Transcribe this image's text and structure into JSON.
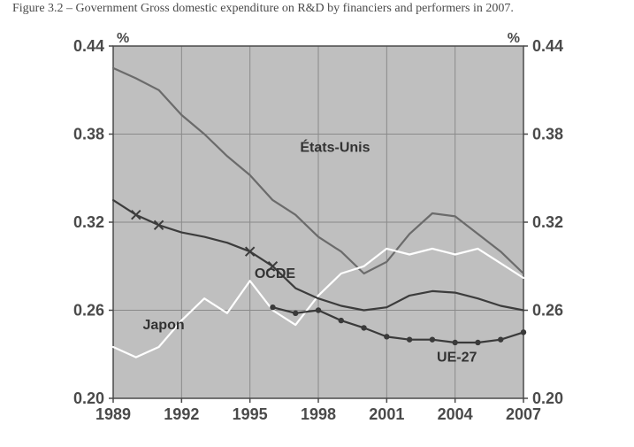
{
  "caption": "Figure 3.2 – Government Gross domestic expenditure on R&D by financiers and performers in 2007.",
  "chart": {
    "type": "line",
    "background_color": "#bfbfbf",
    "grid_color": "#8a8a8a",
    "axis_color": "#4a4a4a",
    "unit_label": "%",
    "xlabel_years": [
      1989,
      1992,
      1995,
      1998,
      2001,
      2004,
      2007
    ],
    "xlim": [
      1989,
      2007
    ],
    "yticks": [
      0.2,
      0.26,
      0.32,
      0.38,
      0.44
    ],
    "ylim": [
      0.2,
      0.44
    ],
    "label_fontsize": 18,
    "line_width": 2.2,
    "series": {
      "etats_unis": {
        "label": "États-Unis",
        "color": "#6b6b6b",
        "marker": "none",
        "label_xy": [
          1997.2,
          0.368
        ],
        "x": [
          1989,
          1990,
          1991,
          1992,
          1993,
          1994,
          1995,
          1996,
          1997,
          1998,
          1999,
          2000,
          2001,
          2002,
          2003,
          2004,
          2005,
          2006,
          2007
        ],
        "y": [
          0.425,
          0.418,
          0.41,
          0.393,
          0.38,
          0.365,
          0.352,
          0.335,
          0.325,
          0.31,
          0.3,
          0.285,
          0.293,
          0.312,
          0.326,
          0.324,
          0.312,
          0.3,
          0.285
        ]
      },
      "ocde": {
        "label": "OCDE",
        "color": "#3c3c3c",
        "marker": "x",
        "marker_years": [
          1990,
          1991,
          1995,
          1996
        ],
        "label_xy": [
          1995.2,
          0.282
        ],
        "x": [
          1989,
          1990,
          1991,
          1992,
          1993,
          1994,
          1995,
          1996,
          1997,
          1998,
          1999,
          2000,
          2001,
          2002,
          2003,
          2004,
          2005,
          2006,
          2007
        ],
        "y": [
          0.335,
          0.325,
          0.318,
          0.313,
          0.31,
          0.306,
          0.3,
          0.29,
          0.275,
          0.268,
          0.263,
          0.26,
          0.262,
          0.27,
          0.273,
          0.272,
          0.268,
          0.263,
          0.26
        ]
      },
      "japon": {
        "label": "Japon",
        "color": "#ffffff",
        "marker": "none",
        "label_xy": [
          1990.3,
          0.247
        ],
        "x": [
          1989,
          1990,
          1991,
          1992,
          1993,
          1994,
          1995,
          1996,
          1997,
          1998,
          1999,
          2000,
          2001,
          2002,
          2003,
          2004,
          2005,
          2006,
          2007
        ],
        "y": [
          0.235,
          0.228,
          0.235,
          0.253,
          0.268,
          0.258,
          0.28,
          0.26,
          0.25,
          0.27,
          0.285,
          0.29,
          0.302,
          0.298,
          0.302,
          0.298,
          0.302,
          0.292,
          0.282
        ]
      },
      "ue27": {
        "label": "UE-27",
        "color": "#3a3a3a",
        "marker": "dot",
        "label_xy": [
          2003.2,
          0.225
        ],
        "x": [
          1996,
          1997,
          1998,
          1999,
          2000,
          2001,
          2002,
          2003,
          2004,
          2005,
          2006,
          2007
        ],
        "y": [
          0.262,
          0.258,
          0.26,
          0.253,
          0.248,
          0.242,
          0.24,
          0.24,
          0.238,
          0.238,
          0.24,
          0.245
        ]
      }
    }
  }
}
